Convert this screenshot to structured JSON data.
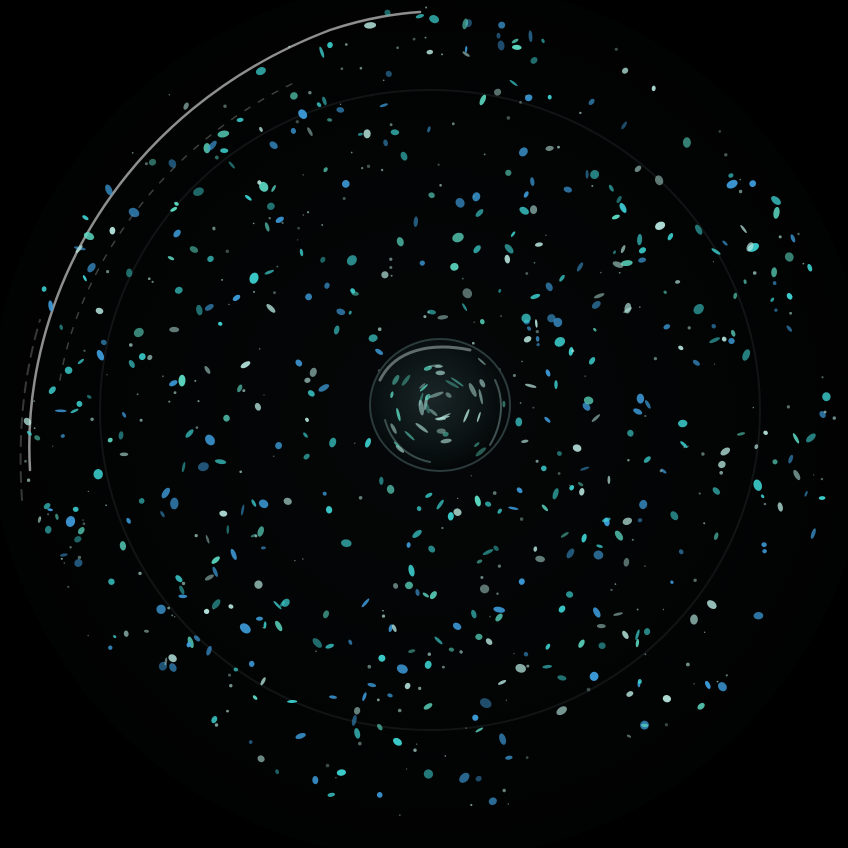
{
  "photo": {
    "subject": "dark-dish-with-speckled-glaze",
    "palette": {
      "background": "#000000",
      "speck_cyan": "#3fd6d6",
      "speck_blue": "#3fa0e0",
      "speck_teal": "#5fe0c8",
      "speck_pale": "#b8e8e0",
      "rim_highlight": "#cfcfcf",
      "center_glint": "#9aa8a8"
    }
  }
}
